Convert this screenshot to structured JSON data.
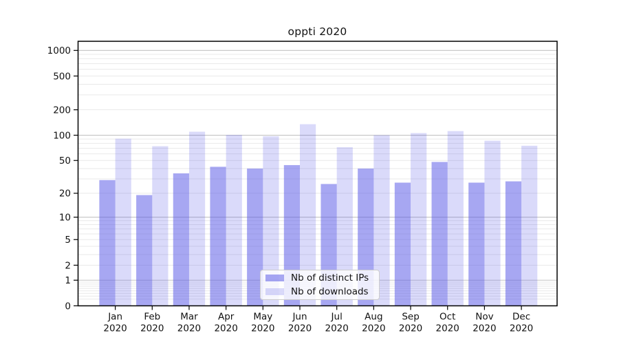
{
  "figure": {
    "background": "#ffffff"
  },
  "chart_data": {
    "type": "bar",
    "title": "oppti 2020",
    "xlabel": "",
    "ylabel": "",
    "yscale": "log1p",
    "grid": true,
    "legend_position": "lower-center",
    "ylim": [
      0,
      1280
    ],
    "yticks": [
      0,
      1,
      2,
      5,
      10,
      20,
      50,
      100,
      200,
      500,
      1000
    ],
    "major_grid_values": [
      1,
      10,
      100,
      1000
    ],
    "categories": [
      "Jan 2020",
      "Feb 2020",
      "Mar 2020",
      "Apr 2020",
      "May 2020",
      "Jun 2020",
      "Jul 2020",
      "Aug 2020",
      "Sep 2020",
      "Oct 2020",
      "Nov 2020",
      "Dec 2020"
    ],
    "series": [
      {
        "name": "Nb of distinct IPs",
        "color": "rgba(80,80,230,0.5)",
        "values": [
          29,
          19,
          35,
          42,
          40,
          44,
          26,
          40,
          27,
          48,
          27,
          28
        ]
      },
      {
        "name": "Nb of downloads",
        "color": "rgba(80,80,230,0.21)",
        "values": [
          91,
          74,
          110,
          101,
          97,
          135,
          72,
          100,
          106,
          112,
          86,
          75
        ]
      }
    ],
    "colors": {
      "major_grid": "#c3c3c3",
      "minor_grid": "#e9e9e9",
      "spine": "#000000",
      "tick_label": "#111111"
    }
  }
}
